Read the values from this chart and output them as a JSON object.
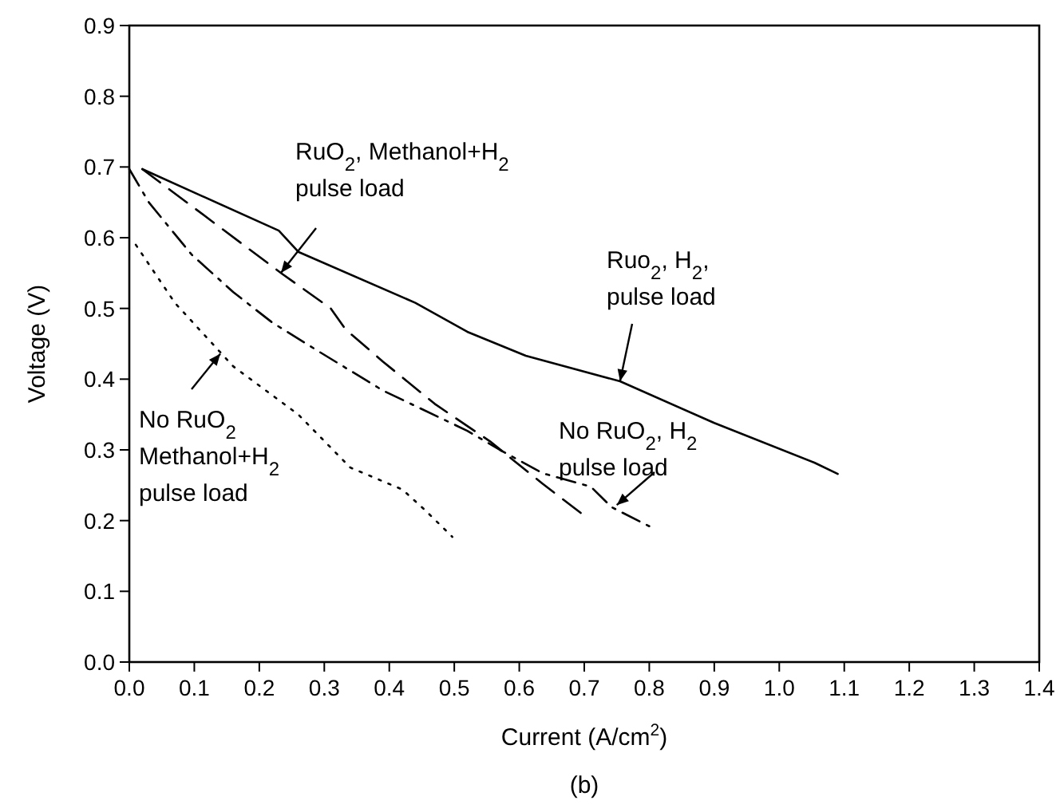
{
  "chart_data": {
    "type": "line",
    "xlabel": "Current (A/cm$^{2}$)",
    "ylabel": "Voltage (V)",
    "xlim": [
      0,
      1.4
    ],
    "ylim": [
      0,
      0.9
    ],
    "xticks": [
      {
        "value": 0,
        "label": "0.0"
      },
      0.1,
      0.2,
      0.3,
      0.4,
      0.5,
      0.6,
      0.7,
      0.8,
      0.9,
      {
        "value": 1,
        "label": "1.0"
      },
      1.1,
      1.2,
      1.3,
      1.4
    ],
    "yticks": [
      {
        "value": 0,
        "label": "0.0"
      },
      0.1,
      0.2,
      0.3,
      0.4,
      0.5,
      0.6,
      0.7,
      0.8,
      0.9
    ],
    "grid": false,
    "marker": "none",
    "series": [
      {
        "color": "#000000",
        "line_style": "solid",
        "x": [
          0.02,
          0.23,
          0.26,
          0.44,
          0.52,
          0.61,
          0.755,
          0.9,
          1.054,
          1.09
        ],
        "values": [
          0.697,
          0.61,
          0.58,
          0.508,
          0.467,
          0.433,
          0.397,
          0.338,
          0.282,
          0.266
        ]
      },
      {
        "color": "#000000",
        "line_style": "dashed",
        "x": [
          0.02,
          0.235,
          0.31,
          0.333,
          0.39,
          0.47,
          0.555,
          0.636,
          0.7
        ],
        "values": [
          0.697,
          0.549,
          0.5,
          0.47,
          0.425,
          0.365,
          0.312,
          0.252,
          0.207
        ]
      },
      {
        "color": "#000000",
        "line_style": "dashdot",
        "x": [
          0,
          0.03,
          0.096,
          0.16,
          0.22,
          0.29,
          0.39,
          0.52,
          0.57,
          0.636,
          0.71,
          0.742,
          0.8
        ],
        "values": [
          0.697,
          0.65,
          0.576,
          0.523,
          0.48,
          0.44,
          0.384,
          0.327,
          0.3,
          0.267,
          0.248,
          0.219,
          0.192
        ]
      },
      {
        "color": "#000000",
        "line_style": "dotted",
        "x": [
          0.01,
          0.07,
          0.1,
          0.16,
          0.26,
          0.34,
          0.42,
          0.456,
          0.497
        ],
        "values": [
          0.59,
          0.508,
          0.478,
          0.418,
          0.35,
          0.275,
          0.244,
          0.214,
          0.177
        ]
      }
    ],
    "annotations": [
      "RuO$_{2}$, Methanol+H$_{2}$ pulse load",
      {
        "text": "Ruo$_{2}$, H$_{2}$, pulse load",
        "x": 0.755,
        "y": 0.397
      },
      {
        "text": "No RuO$_{2}$ Methanol+H$_{2}$ pulse load",
        "x": 0.14,
        "y": 0.436
      },
      {
        "text": "No RuO$_{2}$, H$_{2}$ pulse load",
        "x": 0.75,
        "y": 0.222
      },
      "(b)"
    ]
  }
}
